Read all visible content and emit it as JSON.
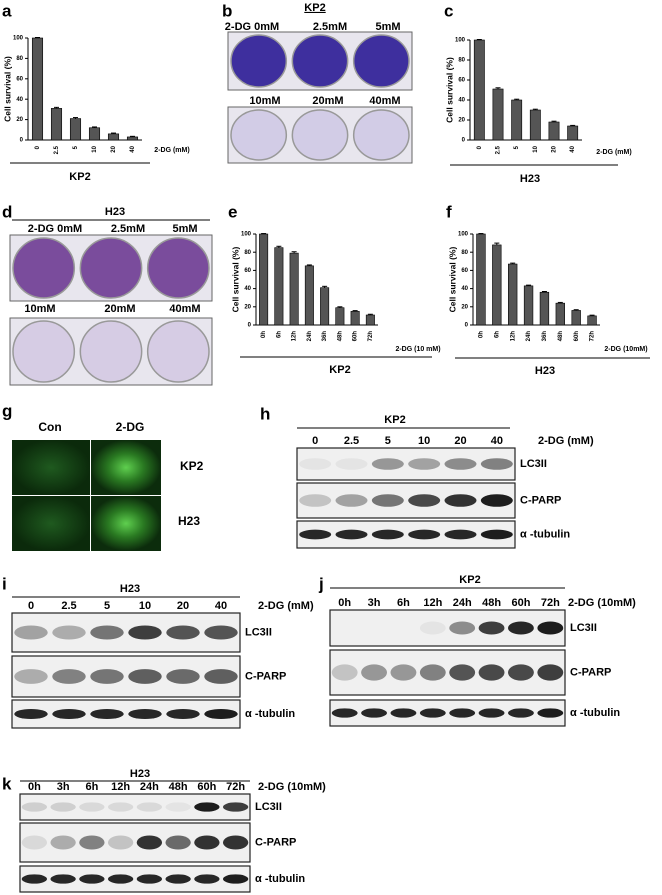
{
  "chart_data": [
    {
      "type": "bar",
      "panel": "a",
      "ylabel": "Cell survival (%)",
      "xlabel": "2-DG (mM)",
      "group": "KP2",
      "categories": [
        "0",
        "2.5",
        "5",
        "10",
        "20",
        "40"
      ],
      "values": [
        100,
        31,
        21,
        12,
        6,
        3
      ],
      "errors": [
        0.5,
        1,
        1,
        0.8,
        0.8,
        0.6
      ],
      "ylim": [
        0,
        100
      ],
      "yticks": [
        0,
        20,
        40,
        60,
        80,
        100
      ],
      "color": "#555555"
    },
    {
      "type": "bar",
      "panel": "c",
      "ylabel": "Cell survival (%)",
      "xlabel": "2-DG (mM)",
      "group": "H23",
      "categories": [
        "0",
        "2.5",
        "5",
        "10",
        "20",
        "40"
      ],
      "values": [
        100,
        51,
        40,
        30,
        18,
        14
      ],
      "errors": [
        0.5,
        1.2,
        0.8,
        0.8,
        0.8,
        0.6
      ],
      "ylim": [
        0,
        100
      ],
      "yticks": [
        0,
        20,
        40,
        60,
        80,
        100
      ],
      "color": "#555555"
    },
    {
      "type": "bar",
      "panel": "e",
      "ylabel": "Cell survival (%)",
      "xlabel": "2-DG (10 mM)",
      "group": "KP2",
      "categories": [
        "0h",
        "6h",
        "12h",
        "24h",
        "36h",
        "48h",
        "60h",
        "72h"
      ],
      "values": [
        100,
        85,
        79,
        65,
        41,
        19,
        15,
        11
      ],
      "errors": [
        0.5,
        1.5,
        1.5,
        1,
        1.5,
        1,
        0.8,
        0.8
      ],
      "ylim": [
        0,
        100
      ],
      "yticks": [
        0,
        20,
        40,
        60,
        80,
        100
      ],
      "color": "#555555"
    },
    {
      "type": "bar",
      "panel": "f",
      "ylabel": "Cell survival (%)",
      "xlabel": "2-DG (10mM)",
      "group": "H23",
      "categories": [
        "0h",
        "6h",
        "12h",
        "24h",
        "36h",
        "48h",
        "60h",
        "72h"
      ],
      "values": [
        100,
        88,
        67,
        43,
        36,
        24,
        16,
        10
      ],
      "errors": [
        0.5,
        2,
        1,
        0.8,
        0.8,
        0.8,
        0.8,
        0.8
      ],
      "ylim": [
        0,
        100
      ],
      "yticks": [
        0,
        20,
        40,
        60,
        80,
        100
      ],
      "color": "#555555"
    }
  ],
  "plates": [
    {
      "panel": "b",
      "cell_line": "KP2",
      "top_labels": [
        "2-DG 0mM",
        "2.5mM",
        "5mM"
      ],
      "bottom_labels": [
        "10mM",
        "20mM",
        "40mM"
      ]
    },
    {
      "panel": "d",
      "cell_line": "H23",
      "top_labels": [
        "2-DG 0mM",
        "2.5mM",
        "5mM"
      ],
      "bottom_labels": [
        "10mM",
        "20mM",
        "40mM"
      ]
    }
  ],
  "fluorescence": {
    "panel": "g",
    "columns": [
      "Con",
      "2-DG"
    ],
    "rows": [
      "KP2",
      "H23"
    ]
  },
  "blots": [
    {
      "panel": "h",
      "cell_line": "KP2",
      "lanes": [
        "0",
        "2.5",
        "5",
        "10",
        "20",
        "40"
      ],
      "treatment": "2-DG (mM)",
      "rows": [
        "LC3II",
        "C-PARP",
        "α -tubulin"
      ]
    },
    {
      "panel": "i",
      "cell_line": "H23",
      "lanes": [
        "0",
        "2.5",
        "5",
        "10",
        "20",
        "40"
      ],
      "treatment": "2-DG (mM)",
      "rows": [
        "LC3II",
        "C-PARP",
        "α -tubulin"
      ]
    },
    {
      "panel": "j",
      "cell_line": "KP2",
      "lanes": [
        "0h",
        "3h",
        "6h",
        "12h",
        "24h",
        "48h",
        "60h",
        "72h"
      ],
      "treatment": "2-DG (10mM)",
      "rows": [
        "LC3II",
        "C-PARP",
        "α -tubulin"
      ]
    },
    {
      "panel": "k",
      "cell_line": "H23",
      "lanes": [
        "0h",
        "3h",
        "6h",
        "12h",
        "24h",
        "48h",
        "60h",
        "72h"
      ],
      "treatment": "2-DG (10mM)",
      "rows": [
        "LC3II",
        "C-PARP",
        "α -tubulin"
      ]
    }
  ]
}
